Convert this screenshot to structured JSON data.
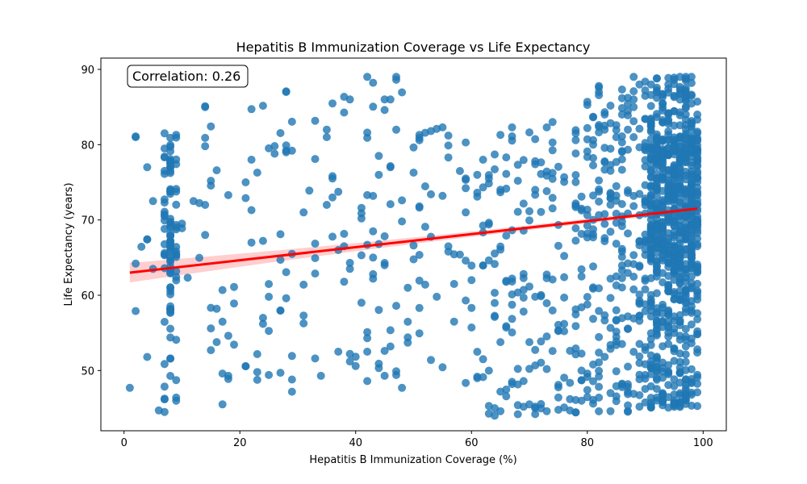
{
  "chart_data": {
    "type": "scatter",
    "title": "Hepatitis B Immunization Coverage vs Life Expectancy",
    "xlabel": "Hepatitis B Immunization Coverage (%)",
    "ylabel": "Life Expectancy (years)",
    "annotation": "Correlation: 0.26",
    "xlim": [
      -4,
      104
    ],
    "ylim": [
      42,
      91.5
    ],
    "xticks": [
      0,
      20,
      40,
      60,
      80,
      100
    ],
    "yticks": [
      50,
      60,
      70,
      80,
      90
    ],
    "grid": false,
    "colors": {
      "points": "#1f77b4",
      "regression_line": "#ff0000",
      "confidence_band": "#ffb3b3"
    },
    "regression": {
      "x_start": 1,
      "y_start": 63.0,
      "x_end": 99,
      "y_end": 71.5,
      "ci_halfwidth_at_ends": 1.3,
      "ci_halfwidth_min": 0.3,
      "x_at_min_ci": 78
    },
    "clusters": [
      {
        "x": [
          7,
          9
        ],
        "y": [
          58,
          81
        ],
        "n": 80
      },
      {
        "x": [
          7,
          9
        ],
        "y": [
          44.5,
          58
        ],
        "n": 14
      },
      {
        "x": [
          2,
          14
        ],
        "y": [
          62,
          73
        ],
        "n": 14
      },
      {
        "x": [
          14,
          60
        ],
        "y": [
          47,
          89
        ],
        "n": 95
      },
      {
        "x": [
          60,
          80
        ],
        "y": [
          44,
          82
        ],
        "n": 160
      },
      {
        "x": [
          80,
          90
        ],
        "y": [
          44.5,
          89
        ],
        "n": 190
      },
      {
        "x": [
          90,
          99
        ],
        "y": [
          45,
          89
        ],
        "n": 520
      },
      {
        "x": [
          91,
          99
        ],
        "y": [
          70,
          81
        ],
        "n": 180
      },
      {
        "x": [
          91,
          99
        ],
        "y": [
          63,
          70
        ],
        "n": 120
      }
    ],
    "points": [
      {
        "x": 1,
        "y": 47.7
      },
      {
        "x": 2,
        "y": 81.0
      },
      {
        "x": 2,
        "y": 81.1
      },
      {
        "x": 2,
        "y": 64.2
      },
      {
        "x": 2,
        "y": 57.9
      },
      {
        "x": 4,
        "y": 77.0
      },
      {
        "x": 4,
        "y": 51.8
      },
      {
        "x": 4,
        "y": 67.4
      },
      {
        "x": 5,
        "y": 72.5
      },
      {
        "x": 6,
        "y": 44.7
      },
      {
        "x": 7,
        "y": 44.5
      },
      {
        "x": 7,
        "y": 81.5
      },
      {
        "x": 9,
        "y": 81.3
      },
      {
        "x": 9,
        "y": 46.0
      },
      {
        "x": 9,
        "y": 46.4
      },
      {
        "x": 12,
        "y": 72.5
      },
      {
        "x": 14,
        "y": 85.0
      },
      {
        "x": 14,
        "y": 85.1
      },
      {
        "x": 14,
        "y": 80.9
      },
      {
        "x": 14,
        "y": 79.8
      },
      {
        "x": 14,
        "y": 72.0
      },
      {
        "x": 14,
        "y": 68.0
      },
      {
        "x": 15,
        "y": 55.6
      },
      {
        "x": 16,
        "y": 58.2
      },
      {
        "x": 17,
        "y": 49.6
      },
      {
        "x": 17,
        "y": 45.5
      },
      {
        "x": 18,
        "y": 49.3
      },
      {
        "x": 18,
        "y": 73.3
      },
      {
        "x": 19,
        "y": 61.1
      },
      {
        "x": 21,
        "y": 75.0
      },
      {
        "x": 21,
        "y": 72.9
      },
      {
        "x": 22,
        "y": 78.0
      },
      {
        "x": 22,
        "y": 71.3
      },
      {
        "x": 22,
        "y": 67.0
      },
      {
        "x": 23,
        "y": 49.8
      },
      {
        "x": 24,
        "y": 57.0
      },
      {
        "x": 24,
        "y": 56.2
      },
      {
        "x": 25,
        "y": 59.8
      },
      {
        "x": 25,
        "y": 49.4
      },
      {
        "x": 26,
        "y": 78.8
      },
      {
        "x": 27,
        "y": 68.1
      },
      {
        "x": 27,
        "y": 64.7
      },
      {
        "x": 27,
        "y": 49.7
      },
      {
        "x": 28,
        "y": 87.0
      },
      {
        "x": 28,
        "y": 79.2
      },
      {
        "x": 28,
        "y": 79.0
      },
      {
        "x": 28,
        "y": 59.6
      },
      {
        "x": 29,
        "y": 79.2
      },
      {
        "x": 29,
        "y": 65.5
      },
      {
        "x": 29,
        "y": 48.8
      },
      {
        "x": 31,
        "y": 71.0
      },
      {
        "x": 31,
        "y": 61.4
      },
      {
        "x": 31,
        "y": 57.3
      },
      {
        "x": 32,
        "y": 73.9
      },
      {
        "x": 33,
        "y": 78.1
      },
      {
        "x": 33,
        "y": 51.6
      },
      {
        "x": 35,
        "y": 82.0
      },
      {
        "x": 35,
        "y": 81.0
      },
      {
        "x": 35,
        "y": 72.0
      },
      {
        "x": 36,
        "y": 75.5
      },
      {
        "x": 36,
        "y": 73.0
      },
      {
        "x": 37,
        "y": 66.0
      },
      {
        "x": 37,
        "y": 52.5
      },
      {
        "x": 38,
        "y": 66.5
      },
      {
        "x": 38,
        "y": 61.8
      },
      {
        "x": 39,
        "y": 86.0
      },
      {
        "x": 39,
        "y": 64.3
      },
      {
        "x": 39,
        "y": 63.5
      },
      {
        "x": 39,
        "y": 52.2
      },
      {
        "x": 39,
        "y": 51.2
      },
      {
        "x": 41,
        "y": 71.6
      },
      {
        "x": 41,
        "y": 65.3
      },
      {
        "x": 41,
        "y": 59.0
      },
      {
        "x": 42,
        "y": 89.0
      },
      {
        "x": 42,
        "y": 81.6
      },
      {
        "x": 42,
        "y": 80.9
      },
      {
        "x": 42,
        "y": 66.7
      },
      {
        "x": 42,
        "y": 55.1
      },
      {
        "x": 42,
        "y": 54.3
      },
      {
        "x": 42,
        "y": 52.5
      },
      {
        "x": 42,
        "y": 48.6
      },
      {
        "x": 43,
        "y": 68.5
      },
      {
        "x": 43,
        "y": 65.0
      },
      {
        "x": 43,
        "y": 62.8
      },
      {
        "x": 43,
        "y": 62.2
      },
      {
        "x": 44,
        "y": 78.5
      },
      {
        "x": 44,
        "y": 76.0
      },
      {
        "x": 44,
        "y": 66.8
      },
      {
        "x": 44,
        "y": 50.9
      },
      {
        "x": 45,
        "y": 64.0
      },
      {
        "x": 45,
        "y": 49.3
      },
      {
        "x": 46,
        "y": 86.0
      },
      {
        "x": 46,
        "y": 77.0
      },
      {
        "x": 46,
        "y": 72.1
      },
      {
        "x": 46,
        "y": 53.2
      },
      {
        "x": 47,
        "y": 89.0
      },
      {
        "x": 47,
        "y": 58.6
      },
      {
        "x": 47,
        "y": 49.9
      },
      {
        "x": 48,
        "y": 72.6
      },
      {
        "x": 48,
        "y": 69.8
      },
      {
        "x": 48,
        "y": 47.7
      },
      {
        "x": 49,
        "y": 54.4
      },
      {
        "x": 49,
        "y": 53.7
      },
      {
        "x": 49,
        "y": 61.0
      },
      {
        "x": 51,
        "y": 81.3
      },
      {
        "x": 51,
        "y": 80.9
      },
      {
        "x": 51,
        "y": 71.8
      },
      {
        "x": 52,
        "y": 61.4
      },
      {
        "x": 52,
        "y": 69.1
      },
      {
        "x": 53,
        "y": 81.8
      },
      {
        "x": 53,
        "y": 73.4
      },
      {
        "x": 54,
        "y": 82.1
      },
      {
        "x": 54,
        "y": 59.8
      },
      {
        "x": 55,
        "y": 82.3
      },
      {
        "x": 55,
        "y": 73.2
      },
      {
        "x": 56,
        "y": 81.2
      },
      {
        "x": 56,
        "y": 65.8
      },
      {
        "x": 57,
        "y": 61.5
      },
      {
        "x": 57,
        "y": 56.5
      },
      {
        "x": 58,
        "y": 76.5
      },
      {
        "x": 58,
        "y": 65.4
      },
      {
        "x": 59,
        "y": 75.5
      },
      {
        "x": 59,
        "y": 71.0
      },
      {
        "x": 59,
        "y": 64.6
      },
      {
        "x": 59,
        "y": 59.3
      },
      {
        "x": 61,
        "y": 76.0
      },
      {
        "x": 61,
        "y": 73.1
      },
      {
        "x": 61,
        "y": 49.0
      },
      {
        "x": 62,
        "y": 78.0
      },
      {
        "x": 62,
        "y": 51.5
      },
      {
        "x": 63,
        "y": 45.3
      },
      {
        "x": 64,
        "y": 78.7
      },
      {
        "x": 64,
        "y": 44.0
      },
      {
        "x": 65,
        "y": 81.3
      },
      {
        "x": 65,
        "y": 74.0
      },
      {
        "x": 65,
        "y": 44.6
      },
      {
        "x": 66,
        "y": 55.7
      },
      {
        "x": 67,
        "y": 82.3
      },
      {
        "x": 67,
        "y": 48.2
      },
      {
        "x": 68,
        "y": 45.4
      },
      {
        "x": 68,
        "y": 44.2
      },
      {
        "x": 69,
        "y": 48.6
      },
      {
        "x": 72,
        "y": 76.1
      },
      {
        "x": 73,
        "y": 82.3
      },
      {
        "x": 73,
        "y": 50.2
      },
      {
        "x": 73,
        "y": 44.6
      },
      {
        "x": 74,
        "y": 83.0
      },
      {
        "x": 75,
        "y": 48.1
      },
      {
        "x": 76,
        "y": 45.1
      },
      {
        "x": 77,
        "y": 46.2
      },
      {
        "x": 78,
        "y": 81.5
      },
      {
        "x": 79,
        "y": 46.0
      },
      {
        "x": 82,
        "y": 87.0
      },
      {
        "x": 82,
        "y": 49.2
      },
      {
        "x": 83,
        "y": 84.0
      },
      {
        "x": 83,
        "y": 82.0
      },
      {
        "x": 84,
        "y": 47.0
      },
      {
        "x": 84,
        "y": 44.6
      },
      {
        "x": 85,
        "y": 81.0
      },
      {
        "x": 86,
        "y": 84.0
      },
      {
        "x": 86,
        "y": 47.8
      },
      {
        "x": 87,
        "y": 44.6
      },
      {
        "x": 87,
        "y": 82.0
      },
      {
        "x": 88,
        "y": 89.0
      },
      {
        "x": 88,
        "y": 86.0
      },
      {
        "x": 88,
        "y": 85.0
      },
      {
        "x": 88,
        "y": 81.0
      },
      {
        "x": 89,
        "y": 88.0
      },
      {
        "x": 89,
        "y": 45.2
      },
      {
        "x": 90,
        "y": 49.4
      },
      {
        "x": 91,
        "y": 88.0
      },
      {
        "x": 91,
        "y": 45.4
      },
      {
        "x": 93,
        "y": 45.9
      },
      {
        "x": 93,
        "y": 45.8
      },
      {
        "x": 94,
        "y": 88.0
      },
      {
        "x": 95,
        "y": 46.0
      },
      {
        "x": 96,
        "y": 89.0
      },
      {
        "x": 96,
        "y": 54.1
      },
      {
        "x": 97,
        "y": 89.0
      },
      {
        "x": 98,
        "y": 89.0
      },
      {
        "x": 99,
        "y": 47.1
      },
      {
        "x": 99,
        "y": 54.8
      },
      {
        "x": 99,
        "y": 84.0
      },
      {
        "x": 99,
        "y": 57.6
      },
      {
        "x": 98,
        "y": 86.5
      }
    ]
  }
}
